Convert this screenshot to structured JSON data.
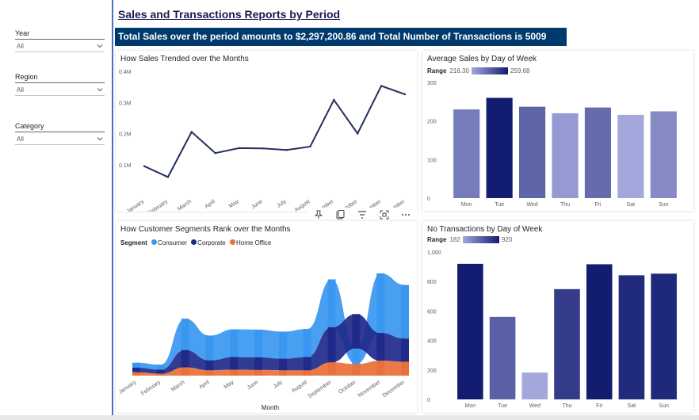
{
  "report": {
    "title": "Sales and Transactions Reports by Period",
    "banner": "Total Sales over the period amounts to $2,297,200.86 and Total Number of Transactions is 5009"
  },
  "filters": [
    {
      "label": "Year",
      "value": "All"
    },
    {
      "label": "Region",
      "value": "All"
    },
    {
      "label": "Category",
      "value": "All"
    }
  ],
  "colors": {
    "line": "#252f5e",
    "dark_navy": "#121c70",
    "light_purple": "#a4a7dc",
    "consumer": "#3a97f0",
    "corporate": "#1f2a8a",
    "home_office": "#e8703a",
    "banner_bg": "#003a6d"
  },
  "toolbar": {
    "icons": [
      "pin-icon",
      "copy-icon",
      "filter-icon",
      "focus-mode-icon",
      "more-options-icon"
    ]
  },
  "chart_data": [
    {
      "id": "sales_trend",
      "type": "line",
      "title": "How Sales Trended over the Months",
      "categories": [
        "January",
        "February",
        "March",
        "April",
        "May",
        "June",
        "July",
        "August",
        "September",
        "October",
        "November",
        "December"
      ],
      "values": [
        95000,
        60000,
        205000,
        137000,
        153000,
        152000,
        147000,
        158000,
        308000,
        200000,
        353000,
        326000
      ],
      "ylim": [
        0,
        400000
      ],
      "yticks": [
        "0.1M",
        "0.2M",
        "0.3M",
        "0.4M"
      ],
      "ytick_values": [
        100000,
        200000,
        300000,
        400000
      ]
    },
    {
      "id": "avg_sales_dow",
      "type": "bar",
      "title": "Average Sales by Day of Week",
      "legend_label": "Range",
      "range_min": "216.30",
      "range_max": "259.68",
      "categories": [
        "Mon",
        "Tue",
        "Wed",
        "Thu",
        "Fri",
        "Sat",
        "Sun"
      ],
      "values": [
        230,
        260,
        237,
        220,
        235,
        216,
        225
      ],
      "ylim": [
        0,
        300
      ],
      "yticks": [
        "0",
        "100",
        "200",
        "300"
      ],
      "ytick_values": [
        0,
        100,
        200,
        300
      ]
    },
    {
      "id": "segments_rank",
      "type": "area",
      "title": "How Customer Segments Rank over the Months",
      "legend_title": "Segment",
      "xlabel": "Month",
      "categories": [
        "January",
        "February",
        "March",
        "April",
        "May",
        "June",
        "July",
        "August",
        "September",
        "October",
        "November",
        "December"
      ],
      "series": [
        {
          "name": "Consumer",
          "values": [
            15000,
            15000,
            95000,
            75000,
            84000,
            84000,
            82000,
            85000,
            145000,
            47000,
            180000,
            162000
          ]
        },
        {
          "name": "Corporate",
          "values": [
            14000,
            12000,
            52000,
            30000,
            38000,
            38000,
            35000,
            40000,
            106000,
            104000,
            84000,
            70000
          ]
        },
        {
          "name": "Home Office",
          "values": [
            10000,
            6000,
            25000,
            16000,
            18000,
            17000,
            16000,
            16000,
            40000,
            35000,
            45000,
            42000
          ]
        }
      ]
    },
    {
      "id": "transactions_dow",
      "type": "bar",
      "title": "No Transactions by Day of Week",
      "legend_label": "Range",
      "range_min": "182",
      "range_max": "920",
      "categories": [
        "Mon",
        "Tue",
        "Wed",
        "Thu",
        "Fri",
        "Sat",
        "Sun"
      ],
      "values": [
        920,
        560,
        182,
        748,
        917,
        842,
        853
      ],
      "ylim": [
        0,
        1000
      ],
      "yticks": [
        "0",
        "200",
        "400",
        "600",
        "800",
        "1,000"
      ],
      "ytick_values": [
        0,
        200,
        400,
        600,
        800,
        1000
      ]
    }
  ]
}
